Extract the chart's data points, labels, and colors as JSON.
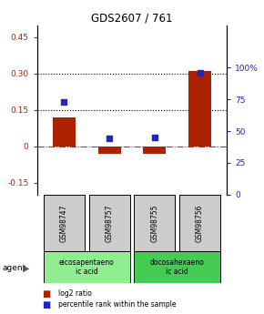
{
  "title": "GDS2607 / 761",
  "samples": [
    "GSM98747",
    "GSM98757",
    "GSM98755",
    "GSM98756"
  ],
  "log2_ratio": [
    0.12,
    -0.03,
    -0.03,
    0.31
  ],
  "percentile_rank": [
    0.73,
    0.44,
    0.45,
    0.96
  ],
  "agents": [
    {
      "label": "eicosapentaeno\nic acid",
      "samples": [
        0,
        1
      ],
      "color": "#90EE90"
    },
    {
      "label": "docosahexaeno\nic acid",
      "samples": [
        2,
        3
      ],
      "color": "#44CC55"
    }
  ],
  "ylim_left": [
    -0.2,
    0.5
  ],
  "ylim_right": [
    0.0,
    1.3333
  ],
  "yticks_left": [
    -0.15,
    0.0,
    0.15,
    0.3,
    0.45
  ],
  "yticks_right": [
    0.0,
    0.25,
    0.5,
    0.75,
    1.0
  ],
  "ytick_labels_left": [
    "-0.15",
    "0",
    "0.15",
    "0.30",
    "0.45"
  ],
  "ytick_labels_right": [
    "0",
    "25",
    "50",
    "75",
    "100%"
  ],
  "hlines": [
    0.15,
    0.3
  ],
  "bar_color": "#AA2200",
  "scatter_color": "#2222CC",
  "bar_width": 0.5,
  "zero_line_color": "#CC2222",
  "agent_label": "agent",
  "legend_bar_label": "log2 ratio",
  "legend_scatter_label": "percentile rank within the sample",
  "background_color": "#ffffff",
  "plot_bg": "#ffffff",
  "gray_box_color": "#cccccc"
}
